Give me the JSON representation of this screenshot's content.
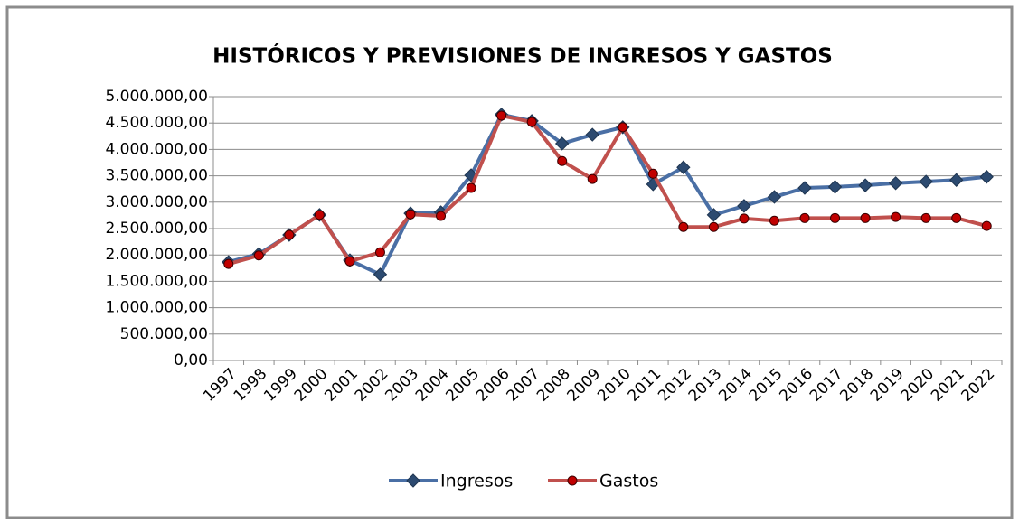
{
  "chart_data": {
    "type": "line",
    "title": "HISTÓRICOS Y PREVISIONES DE INGRESOS Y GASTOS",
    "categories": [
      "1997",
      "1998",
      "1999",
      "2000",
      "2001",
      "2002",
      "2003",
      "2004",
      "2005",
      "2006",
      "2007",
      "2008",
      "2009",
      "2010",
      "2011",
      "2012",
      "2013",
      "2014",
      "2015",
      "2016",
      "2017",
      "2018",
      "2019",
      "2020",
      "2021",
      "2022"
    ],
    "series": [
      {
        "name": "Ingresos",
        "color": "#4a6fa5",
        "marker": "diamond",
        "marker_color": "#2c4a70",
        "values": [
          1865000,
          2020000,
          2380000,
          2760000,
          1900000,
          1630000,
          2790000,
          2810000,
          3510000,
          4660000,
          4540000,
          4110000,
          4280000,
          4420000,
          3340000,
          3660000,
          2760000,
          2930000,
          3100000,
          3270000,
          3290000,
          3320000,
          3360000,
          3390000,
          3420000,
          3480000
        ]
      },
      {
        "name": "Gastos",
        "color": "#c0504d",
        "marker": "circle",
        "marker_color": "#c00000",
        "values": [
          1830000,
          1990000,
          2380000,
          2760000,
          1880000,
          2050000,
          2770000,
          2740000,
          3270000,
          4640000,
          4520000,
          3780000,
          3440000,
          4420000,
          3540000,
          2530000,
          2530000,
          2690000,
          2650000,
          2700000,
          2700000,
          2700000,
          2720000,
          2700000,
          2700000,
          2550000
        ]
      }
    ],
    "ylim": [
      0,
      5000000
    ],
    "yticks": [
      {
        "value": 0,
        "label": "0,00"
      },
      {
        "value": 500000,
        "label": "500.000,00"
      },
      {
        "value": 1000000,
        "label": "1.000.000,00"
      },
      {
        "value": 1500000,
        "label": "1.500.000,00"
      },
      {
        "value": 2000000,
        "label": "2.000.000,00"
      },
      {
        "value": 2500000,
        "label": "2.500.000,00"
      },
      {
        "value": 3000000,
        "label": "3.000.000,00"
      },
      {
        "value": 3500000,
        "label": "3.500.000,00"
      },
      {
        "value": 4000000,
        "label": "4.000.000,00"
      },
      {
        "value": 4500000,
        "label": "4.500.000,00"
      },
      {
        "value": 5000000,
        "label": "5.000.000,00"
      }
    ],
    "grid": true,
    "legend": "bottom"
  }
}
